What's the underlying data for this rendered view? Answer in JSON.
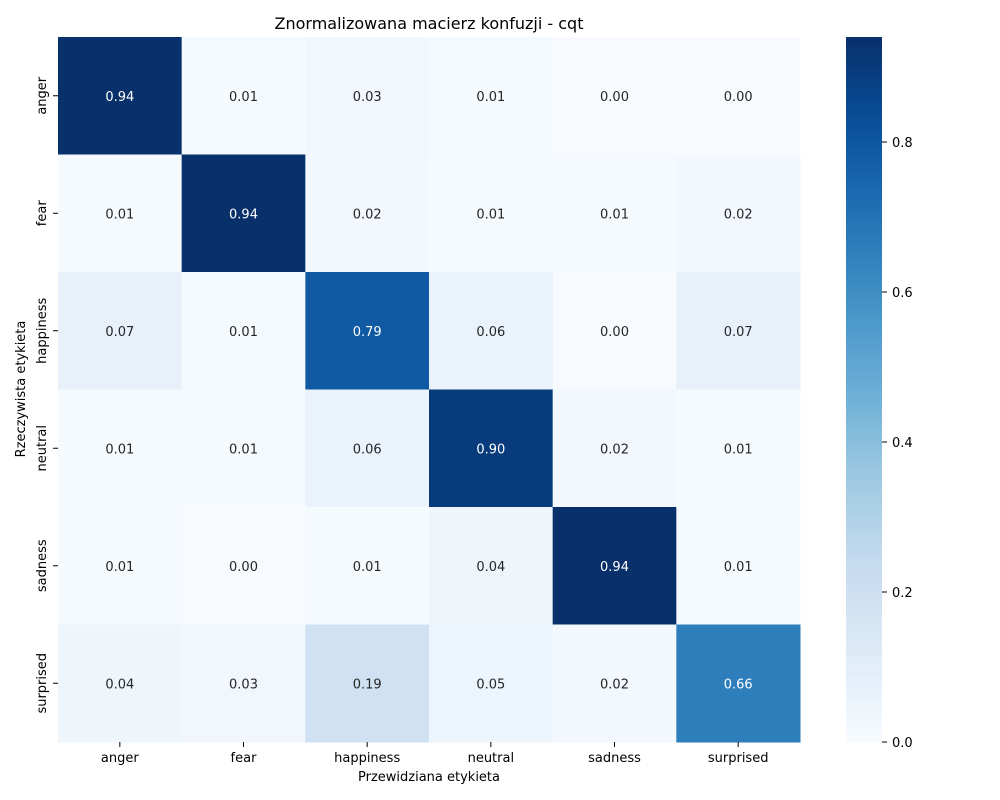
{
  "chart_data": {
    "type": "heatmap",
    "title": "Znormalizowana macierz konfuzji - cqt",
    "xlabel": "Przewidziana etykieta",
    "ylabel": "Rzeczywista etykieta",
    "x_categories": [
      "anger",
      "fear",
      "happiness",
      "neutral",
      "sadness",
      "surprised"
    ],
    "y_categories": [
      "anger",
      "fear",
      "happiness",
      "neutral",
      "sadness",
      "surprised"
    ],
    "values": [
      [
        0.94,
        0.01,
        0.03,
        0.01,
        0.0,
        0.0
      ],
      [
        0.01,
        0.94,
        0.02,
        0.01,
        0.01,
        0.02
      ],
      [
        0.07,
        0.01,
        0.79,
        0.06,
        0.0,
        0.07
      ],
      [
        0.01,
        0.01,
        0.06,
        0.9,
        0.02,
        0.01
      ],
      [
        0.01,
        0.0,
        0.01,
        0.04,
        0.94,
        0.01
      ],
      [
        0.04,
        0.03,
        0.19,
        0.05,
        0.02,
        0.66
      ]
    ],
    "colormap": "Blues",
    "colorbar_range": [
      0.0,
      0.94
    ],
    "colorbar_ticks": [
      "0.0",
      "0.2",
      "0.4",
      "0.6",
      "0.8"
    ],
    "colorbar_tick_values": [
      0.0,
      0.2,
      0.4,
      0.6,
      0.8
    ],
    "annotation_dark_color": "#262626",
    "annotation_light_color": "#ffffff"
  }
}
